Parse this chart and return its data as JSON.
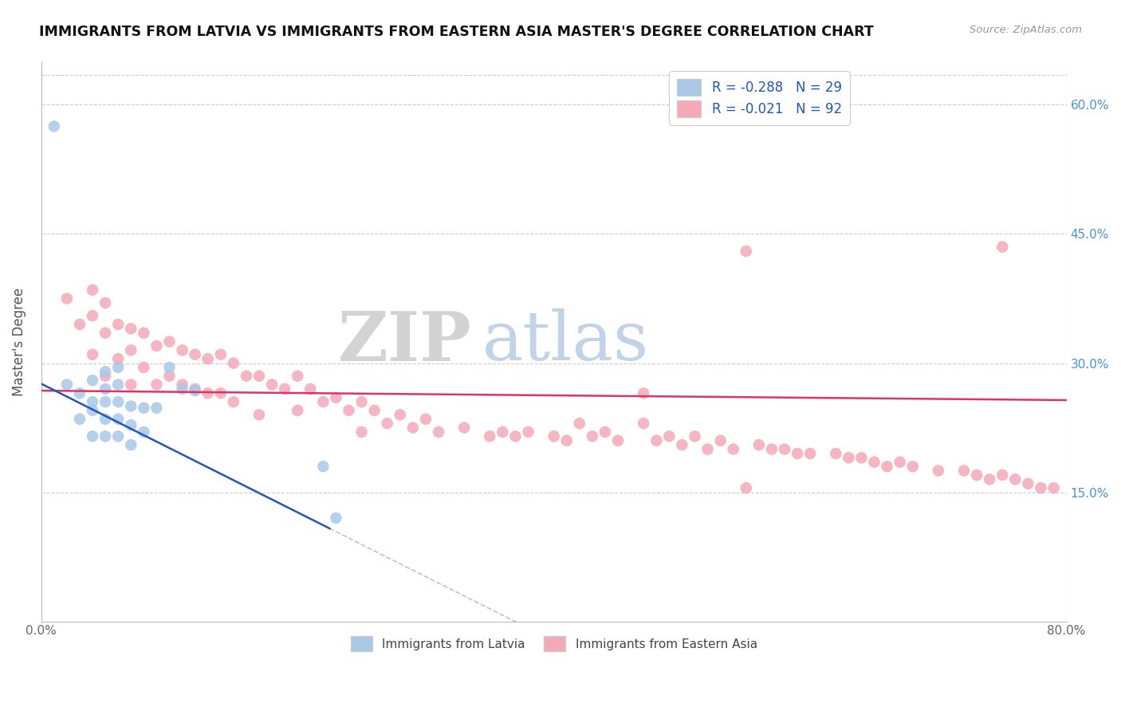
{
  "title": "IMMIGRANTS FROM LATVIA VS IMMIGRANTS FROM EASTERN ASIA MASTER'S DEGREE CORRELATION CHART",
  "source": "Source: ZipAtlas.com",
  "ylabel": "Master's Degree",
  "legend_label1": "Immigrants from Latvia",
  "legend_label2": "Immigrants from Eastern Asia",
  "r1": -0.288,
  "n1": 29,
  "r2": -0.021,
  "n2": 92,
  "color1": "#a8c8e8",
  "color2": "#f4a8b8",
  "line_color1": "#2255bb",
  "line_color2": "#dd3366",
  "xlim": [
    0.0,
    0.8
  ],
  "ylim": [
    0.0,
    0.65
  ],
  "yticks_right": [
    0.15,
    0.3,
    0.45,
    0.6
  ],
  "ytick_labels_right": [
    "15.0%",
    "30.0%",
    "45.0%",
    "60.0%"
  ],
  "watermark_zip": "ZIP",
  "watermark_atlas": "atlas",
  "background_color": "#ffffff",
  "scatter1_x": [
    0.01,
    0.02,
    0.03,
    0.03,
    0.04,
    0.04,
    0.04,
    0.04,
    0.05,
    0.05,
    0.05,
    0.05,
    0.05,
    0.06,
    0.06,
    0.06,
    0.06,
    0.06,
    0.07,
    0.07,
    0.07,
    0.08,
    0.08,
    0.09,
    0.1,
    0.11,
    0.12,
    0.22,
    0.23
  ],
  "scatter1_y": [
    0.575,
    0.275,
    0.265,
    0.235,
    0.28,
    0.255,
    0.245,
    0.215,
    0.29,
    0.27,
    0.255,
    0.235,
    0.215,
    0.295,
    0.275,
    0.255,
    0.235,
    0.215,
    0.25,
    0.228,
    0.205,
    0.248,
    0.22,
    0.248,
    0.295,
    0.27,
    0.268,
    0.18,
    0.12
  ],
  "scatter2_x": [
    0.02,
    0.03,
    0.04,
    0.04,
    0.04,
    0.05,
    0.05,
    0.05,
    0.06,
    0.06,
    0.07,
    0.07,
    0.07,
    0.08,
    0.08,
    0.09,
    0.09,
    0.1,
    0.1,
    0.11,
    0.11,
    0.12,
    0.12,
    0.13,
    0.13,
    0.14,
    0.14,
    0.15,
    0.15,
    0.16,
    0.17,
    0.17,
    0.18,
    0.19,
    0.2,
    0.2,
    0.21,
    0.22,
    0.23,
    0.24,
    0.25,
    0.25,
    0.26,
    0.27,
    0.28,
    0.29,
    0.3,
    0.31,
    0.33,
    0.35,
    0.36,
    0.37,
    0.38,
    0.4,
    0.41,
    0.42,
    0.43,
    0.44,
    0.45,
    0.47,
    0.48,
    0.49,
    0.5,
    0.51,
    0.52,
    0.53,
    0.54,
    0.55,
    0.56,
    0.57,
    0.58,
    0.59,
    0.6,
    0.62,
    0.63,
    0.64,
    0.65,
    0.66,
    0.67,
    0.68,
    0.7,
    0.72,
    0.73,
    0.74,
    0.75,
    0.76,
    0.77,
    0.78,
    0.79,
    0.55,
    0.75,
    0.47
  ],
  "scatter2_y": [
    0.375,
    0.345,
    0.385,
    0.355,
    0.31,
    0.37,
    0.335,
    0.285,
    0.345,
    0.305,
    0.34,
    0.315,
    0.275,
    0.335,
    0.295,
    0.32,
    0.275,
    0.325,
    0.285,
    0.315,
    0.275,
    0.31,
    0.27,
    0.305,
    0.265,
    0.31,
    0.265,
    0.3,
    0.255,
    0.285,
    0.285,
    0.24,
    0.275,
    0.27,
    0.285,
    0.245,
    0.27,
    0.255,
    0.26,
    0.245,
    0.255,
    0.22,
    0.245,
    0.23,
    0.24,
    0.225,
    0.235,
    0.22,
    0.225,
    0.215,
    0.22,
    0.215,
    0.22,
    0.215,
    0.21,
    0.23,
    0.215,
    0.22,
    0.21,
    0.23,
    0.21,
    0.215,
    0.205,
    0.215,
    0.2,
    0.21,
    0.2,
    0.43,
    0.205,
    0.2,
    0.2,
    0.195,
    0.195,
    0.195,
    0.19,
    0.19,
    0.185,
    0.18,
    0.185,
    0.18,
    0.175,
    0.175,
    0.17,
    0.165,
    0.17,
    0.165,
    0.16,
    0.155,
    0.155,
    0.155,
    0.435,
    0.265
  ]
}
